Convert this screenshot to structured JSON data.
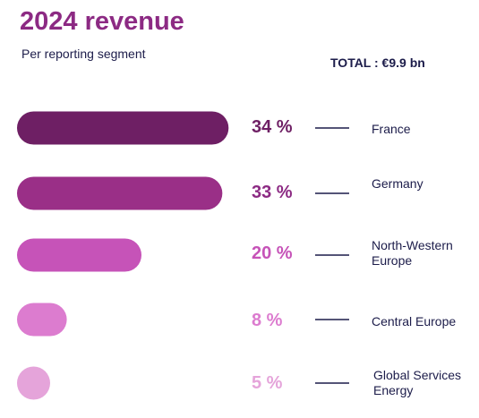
{
  "header": {
    "title": "2024 revenue",
    "subtitle": "Per reporting segment",
    "total": "TOTAL : €9.9 bn"
  },
  "chart_data": {
    "type": "bar",
    "orientation": "horizontal",
    "categories": [
      "France",
      "Germany",
      "North-Western Europe",
      "Central Europe",
      "Global Services Energy"
    ],
    "values": [
      34,
      33,
      20,
      8,
      5
    ],
    "value_labels": [
      "34 %",
      "33 %",
      "20 %",
      "8 %",
      "5 %"
    ],
    "unit": "%",
    "colors": [
      "#6e1f64",
      "#9a2f87",
      "#c653b8",
      "#dc7ccf",
      "#e5a4da"
    ],
    "grid": false,
    "legend": "none"
  }
}
